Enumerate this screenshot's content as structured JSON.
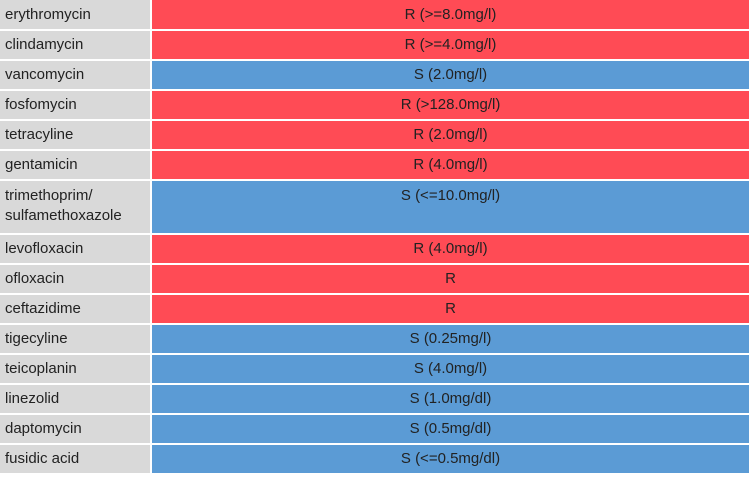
{
  "colors": {
    "resistant": "#ff4b55",
    "susceptible": "#5b9bd5",
    "drug_cell": "#d9d9d9"
  },
  "rows": [
    {
      "drug": "erythromycin",
      "result": "R (>=8.0mg/l)",
      "status": "R"
    },
    {
      "drug": "clindamycin",
      "result": "R (>=4.0mg/l)",
      "status": "R"
    },
    {
      "drug": "vancomycin",
      "result": "S (2.0mg/l)",
      "status": "S"
    },
    {
      "drug": "fosfomycin",
      "result": "R (>128.0mg/l)",
      "status": "R"
    },
    {
      "drug": "tetracyline",
      "result": "R (2.0mg/l)",
      "status": "R"
    },
    {
      "drug": "gentamicin",
      "result": "R (4.0mg/l)",
      "status": "R"
    },
    {
      "drug": "trimethoprim/ sulfamethoxazole",
      "result": "S (<=10.0mg/l)",
      "status": "S"
    },
    {
      "drug": "levofloxacin",
      "result": "R (4.0mg/l)",
      "status": "R"
    },
    {
      "drug": "ofloxacin",
      "result": "R",
      "status": "R"
    },
    {
      "drug": "ceftazidime",
      "result": "R",
      "status": "R"
    },
    {
      "drug": "tigecyline",
      "result": "S (0.25mg/l)",
      "status": "S"
    },
    {
      "drug": "teicoplanin",
      "result": "S (4.0mg/l)",
      "status": "S"
    },
    {
      "drug": "linezolid",
      "result": "S (1.0mg/dl)",
      "status": "S"
    },
    {
      "drug": "daptomycin",
      "result": "S (0.5mg/dl)",
      "status": "S"
    },
    {
      "drug": "fusidic acid",
      "result": "S (<=0.5mg/dl)",
      "status": "S"
    }
  ]
}
